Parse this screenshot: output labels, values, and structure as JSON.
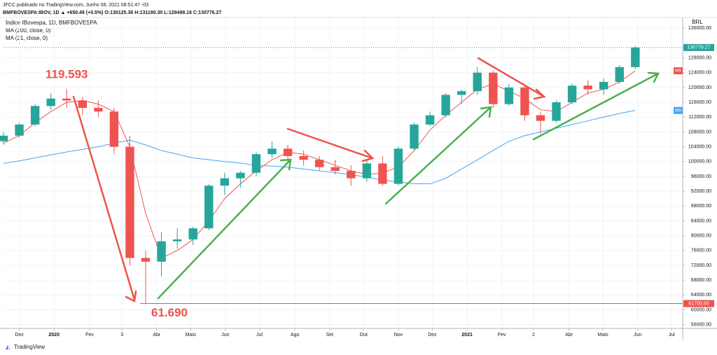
{
  "header": {
    "line1": "JFCC publicado no TradingView.com, Junho 08, 2021 08:51:47 -03",
    "line2": "BMFBOVESPA:IBOV, 1D  ▲ +650.49 (+0.5%)  O:130125.36  H:131190.30  L:129498.16  C:130776.27",
    "footer": "TradingView"
  },
  "chart_data": {
    "type": "candlestick",
    "currency": "BRL",
    "grid": true,
    "x": [
      0,
      2,
      4,
      6,
      8,
      10,
      12,
      14,
      16,
      18,
      20,
      22,
      24,
      26,
      28,
      30,
      32,
      34,
      36,
      38,
      40,
      42,
      44,
      46,
      48,
      50,
      52,
      54,
      56,
      58,
      60,
      62,
      64,
      66,
      68,
      70,
      72,
      74,
      76,
      78,
      80
    ],
    "xlim": [
      0,
      86
    ],
    "xticks": [
      {
        "value": 2,
        "label": "Dez"
      },
      {
        "value": 6.4,
        "label": "2020"
      },
      {
        "value": 10.9,
        "label": "Fev"
      },
      {
        "value": 15,
        "label": "3"
      },
      {
        "value": 19.4,
        "label": "Abr"
      },
      {
        "value": 23.7,
        "label": "Maio"
      },
      {
        "value": 28.1,
        "label": "Jun"
      },
      {
        "value": 32.4,
        "label": "Jul"
      },
      {
        "value": 36.9,
        "label": "Ago"
      },
      {
        "value": 41.3,
        "label": "Set"
      },
      {
        "value": 45.6,
        "label": "Out"
      },
      {
        "value": 50,
        "label": "Nov"
      },
      {
        "value": 54.3,
        "label": "Dez"
      },
      {
        "value": 58.7,
        "label": "2021"
      },
      {
        "value": 63.1,
        "label": "Fev"
      },
      {
        "value": 67.1,
        "label": "2"
      },
      {
        "value": 71.6,
        "label": "Abr"
      },
      {
        "value": 75.9,
        "label": "Maio"
      },
      {
        "value": 80.3,
        "label": "Jun"
      },
      {
        "value": 84.6,
        "label": "Jul"
      }
    ],
    "ylim": [
      55000,
      138500
    ],
    "yticks": [
      {
        "value": 56000,
        "label": "56000.00"
      },
      {
        "value": 60000,
        "label": "60000.00"
      },
      {
        "value": 64000,
        "label": "64000.00"
      },
      {
        "value": 68000,
        "label": "68000.00"
      },
      {
        "value": 72000,
        "label": "72000.00"
      },
      {
        "value": 76000,
        "label": "76000.00"
      },
      {
        "value": 80000,
        "label": "80000.00"
      },
      {
        "value": 84000,
        "label": "84000.00"
      },
      {
        "value": 88000,
        "label": "88000.00"
      },
      {
        "value": 92000,
        "label": "92000.00"
      },
      {
        "value": 96000,
        "label": "96000.00"
      },
      {
        "value": 100000,
        "label": "100000.00"
      },
      {
        "value": 104000,
        "label": "104000.00"
      },
      {
        "value": 108000,
        "label": "108000.00"
      },
      {
        "value": 112000,
        "label": "112000.00"
      },
      {
        "value": 116000,
        "label": "116000.00"
      },
      {
        "value": 120000,
        "label": "120000.00"
      },
      {
        "value": 124000,
        "label": "124000.00"
      },
      {
        "value": 128000,
        "label": "128000.00"
      },
      {
        "value": 136000,
        "label": "136000.00"
      }
    ],
    "candles": {
      "name": "Índice IBovespa, 1D, BMFBOVESPA",
      "up_color": "#26a69a",
      "down_color": "#ef5350",
      "open": [
        105500,
        107000,
        110000,
        115000,
        117000,
        116500,
        114500,
        113500,
        104000,
        74000,
        73000,
        78500,
        79000,
        82000,
        93500,
        95500,
        97000,
        102000,
        103500,
        101500,
        100500,
        98500,
        97500,
        95500,
        99500,
        94000,
        103500,
        110000,
        112500,
        118000,
        119000,
        124000,
        115500,
        120000,
        112500,
        111000,
        116000,
        120500,
        119500,
        121500,
        125500
      ],
      "high": [
        108000,
        110500,
        115500,
        118500,
        119593,
        117500,
        116500,
        114500,
        107000,
        76000,
        81000,
        82000,
        82500,
        94000,
        97000,
        97500,
        102500,
        105500,
        104500,
        103000,
        101500,
        100500,
        99000,
        100500,
        101500,
        104000,
        110500,
        113500,
        118500,
        119500,
        125500,
        124500,
        121000,
        120500,
        113500,
        116500,
        121000,
        122000,
        122500,
        126000,
        131190.3
      ],
      "low": [
        104500,
        106500,
        109500,
        114000,
        114500,
        112500,
        112000,
        102000,
        72000,
        61690,
        69000,
        76500,
        77500,
        81500,
        91000,
        93000,
        96000,
        101000,
        100000,
        99000,
        97500,
        96500,
        93500,
        94500,
        93500,
        93500,
        103000,
        109500,
        112000,
        115500,
        118000,
        114500,
        115000,
        111000,
        107500,
        110500,
        115500,
        118000,
        118000,
        121000,
        125000
      ],
      "close": [
        107000,
        110000,
        115000,
        117000,
        116500,
        114500,
        113500,
        104000,
        74000,
        73000,
        78500,
        79000,
        82000,
        93500,
        95500,
        97000,
        102000,
        103500,
        101500,
        100500,
        98500,
        97500,
        95500,
        99500,
        94000,
        103500,
        110000,
        112500,
        118000,
        119000,
        124000,
        115500,
        120000,
        112500,
        111000,
        116000,
        120500,
        119500,
        121500,
        125500,
        130776.27
      ],
      "last_label": "130776.27"
    },
    "series": [
      {
        "name": "MA (200, close, 0)",
        "tag": "MA",
        "color": "#42a5f5",
        "values": [
          99500,
          100200,
          101000,
          101800,
          102600,
          103300,
          104000,
          105000,
          105800,
          104500,
          103000,
          102000,
          101000,
          100500,
          100000,
          99600,
          99000,
          98800,
          98500,
          98000,
          97500,
          97000,
          96500,
          95800,
          95000,
          94500,
          94000,
          94000,
          95500,
          98000,
          100500,
          103000,
          105500,
          107000,
          108000,
          109000,
          110000,
          111000,
          112000,
          113000,
          113800
        ]
      },
      {
        "name": "MA (21, close, 0)",
        "tag": "MA",
        "color": "#ef5350",
        "values": [
          105000,
          107000,
          110500,
          113500,
          116000,
          116500,
          115500,
          113500,
          104000,
          86000,
          74000,
          76000,
          79000,
          84000,
          90000,
          94000,
          97500,
          100500,
          102500,
          102000,
          100500,
          99000,
          97500,
          96500,
          97000,
          98500,
          103000,
          108500,
          112500,
          116000,
          119500,
          121000,
          119000,
          117000,
          114000,
          113500,
          116000,
          118500,
          119500,
          121500,
          124500
        ]
      }
    ],
    "hline": {
      "value": 61700,
      "label": "61700.00",
      "color": "#ef5350"
    },
    "annotations": [
      {
        "text": "119.593",
        "value": 119593,
        "x": 8
      },
      {
        "text": "61.690",
        "value": 61690,
        "x": 18
      }
    ]
  }
}
